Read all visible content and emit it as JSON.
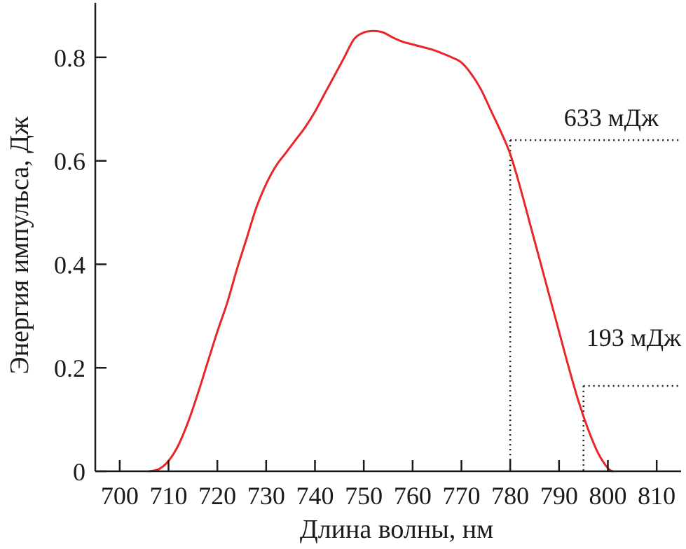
{
  "chart_data": {
    "type": "line",
    "title": "",
    "xlabel": "Длина волны, нм",
    "ylabel": "Энергия импульса, Дж",
    "xlim": [
      695,
      815
    ],
    "ylim": [
      0,
      0.9
    ],
    "x_ticks": [
      700,
      710,
      720,
      730,
      740,
      750,
      760,
      770,
      780,
      790,
      800,
      810
    ],
    "y_ticks": [
      0,
      0.2,
      0.4,
      0.6,
      0.8
    ],
    "y_tick_labels": [
      "0",
      "0.2",
      "0.4",
      "0.6",
      "0.8"
    ],
    "grid": false,
    "series": [
      {
        "color": "#e8262a",
        "x": [
          706,
          708,
          710,
          712,
          714,
          716,
          718,
          720,
          722,
          724,
          726,
          728,
          730,
          732,
          734,
          736,
          738,
          740,
          742,
          744,
          746,
          748,
          750,
          752,
          754,
          756,
          758,
          760,
          762,
          764,
          766,
          768,
          770,
          772,
          774,
          776,
          778,
          780,
          782,
          784,
          786,
          788,
          790,
          792,
          794,
          796,
          798,
          800,
          801
        ],
        "y": [
          0.0,
          0.004,
          0.02,
          0.05,
          0.095,
          0.15,
          0.21,
          0.27,
          0.325,
          0.39,
          0.45,
          0.51,
          0.555,
          0.59,
          0.615,
          0.64,
          0.665,
          0.695,
          0.73,
          0.765,
          0.8,
          0.835,
          0.848,
          0.851,
          0.848,
          0.838,
          0.83,
          0.825,
          0.82,
          0.815,
          0.808,
          0.8,
          0.79,
          0.768,
          0.738,
          0.698,
          0.658,
          0.613,
          0.55,
          0.48,
          0.41,
          0.34,
          0.27,
          0.2,
          0.135,
          0.08,
          0.035,
          0.006,
          0.0
        ]
      }
    ],
    "annotations": [
      {
        "text": "633 мДж",
        "x": 780,
        "y": 0.64
      },
      {
        "text": "193 мДж",
        "x": 795,
        "y": 0.165
      }
    ]
  }
}
